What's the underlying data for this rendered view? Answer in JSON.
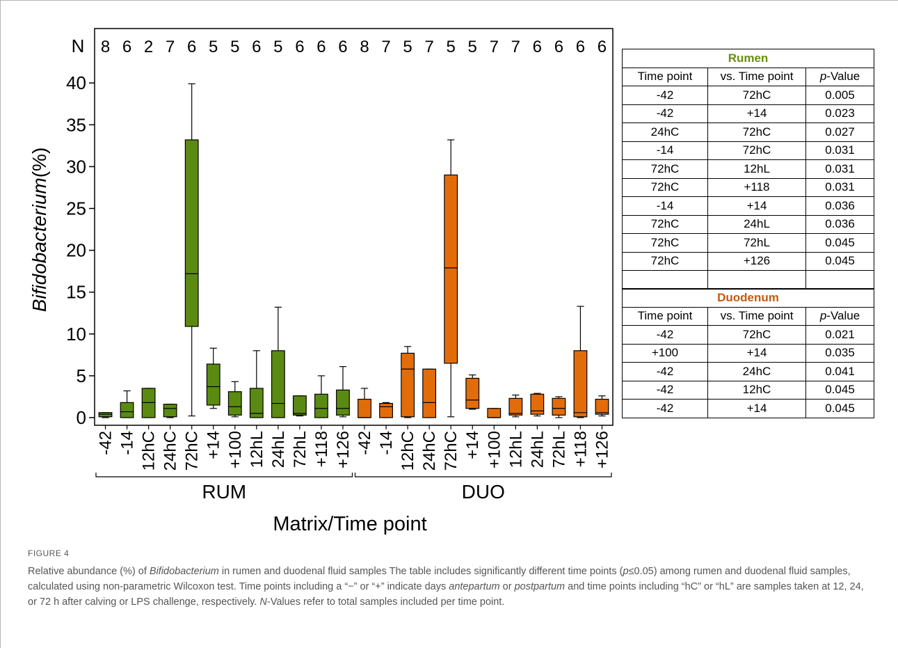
{
  "chart_data": {
    "type": "box",
    "ylabel": "Bifidobacterium(%)",
    "ylabel_italic": "Bifidobacterium",
    "ylabel_unit": "(%)",
    "xlabel": "Matrix/Time point",
    "ylim": [
      0,
      43
    ],
    "yticks": [
      "0",
      "5",
      "10",
      "15",
      "20",
      "25",
      "30",
      "35",
      "40"
    ],
    "n_label": "N",
    "groups": [
      {
        "name": "RUM",
        "color": "#5b8a12",
        "categories": [
          "-42",
          "-14",
          "12hC",
          "24hC",
          "72hC",
          "+14",
          "+100",
          "12hL",
          "24hL",
          "72hL",
          "+118",
          "+126"
        ],
        "n": [
          "8",
          "6",
          "2",
          "7",
          "6",
          "5",
          "5",
          "6",
          "5",
          "6",
          "6",
          "6"
        ],
        "boxes": [
          {
            "min": 0.0,
            "q1": 0.1,
            "median": 0.4,
            "q3": 0.6,
            "max": 0.6
          },
          {
            "min": 0.0,
            "q1": 0.0,
            "median": 0.7,
            "q3": 1.8,
            "max": 3.2
          },
          {
            "min": 0.0,
            "q1": 0.0,
            "median": 1.8,
            "q3": 3.5,
            "max": 3.5
          },
          {
            "min": 0.0,
            "q1": 0.1,
            "median": 1.1,
            "q3": 1.6,
            "max": 1.6
          },
          {
            "min": 0.2,
            "q1": 10.9,
            "median": 17.2,
            "q3": 33.2,
            "max": 39.9
          },
          {
            "min": 1.1,
            "q1": 1.5,
            "median": 3.7,
            "q3": 6.4,
            "max": 8.3
          },
          {
            "min": 0.1,
            "q1": 0.3,
            "median": 1.3,
            "q3": 3.1,
            "max": 4.3
          },
          {
            "min": 0.0,
            "q1": 0.0,
            "median": 0.5,
            "q3": 3.5,
            "max": 8.0
          },
          {
            "min": 0.0,
            "q1": 0.0,
            "median": 1.7,
            "q3": 8.0,
            "max": 13.2
          },
          {
            "min": 0.2,
            "q1": 0.3,
            "median": 0.5,
            "q3": 2.6,
            "max": 2.6
          },
          {
            "min": 0.0,
            "q1": 0.0,
            "median": 1.1,
            "q3": 2.8,
            "max": 5.0
          },
          {
            "min": 0.1,
            "q1": 0.3,
            "median": 1.1,
            "q3": 3.3,
            "max": 6.1
          }
        ]
      },
      {
        "name": "DUO",
        "color": "#e36c0a",
        "categories": [
          "-42",
          "-14",
          "12hC",
          "24hC",
          "72hC",
          "+14",
          "+100",
          "12hL",
          "24hL",
          "72hL",
          "+118",
          "+126"
        ],
        "n": [
          "8",
          "7",
          "5",
          "7",
          "5",
          "5",
          "7",
          "7",
          "6",
          "6",
          "6",
          "6"
        ],
        "boxes": [
          {
            "min": 0.0,
            "q1": 0.0,
            "median": 0.0,
            "q3": 2.2,
            "max": 3.5
          },
          {
            "min": 0.0,
            "q1": 0.0,
            "median": 1.3,
            "q3": 1.7,
            "max": 1.8
          },
          {
            "min": 0.0,
            "q1": 0.1,
            "median": 5.8,
            "q3": 7.7,
            "max": 8.5
          },
          {
            "min": 0.0,
            "q1": 0.0,
            "median": 1.8,
            "q3": 5.8,
            "max": 5.8
          },
          {
            "min": 0.1,
            "q1": 6.5,
            "median": 17.9,
            "q3": 29.0,
            "max": 33.2
          },
          {
            "min": 1.0,
            "q1": 1.1,
            "median": 2.1,
            "q3": 4.7,
            "max": 5.1
          },
          {
            "min": 0.0,
            "q1": 0.0,
            "median": 0.0,
            "q3": 1.1,
            "max": 1.1
          },
          {
            "min": 0.1,
            "q1": 0.3,
            "median": 0.5,
            "q3": 2.3,
            "max": 2.7
          },
          {
            "min": 0.2,
            "q1": 0.4,
            "median": 0.8,
            "q3": 2.8,
            "max": 2.9
          },
          {
            "min": 0.0,
            "q1": 0.3,
            "median": 1.1,
            "q3": 2.3,
            "max": 2.5
          },
          {
            "min": 0.0,
            "q1": 0.1,
            "median": 0.6,
            "q3": 8.0,
            "max": 13.3
          },
          {
            "min": 0.2,
            "q1": 0.4,
            "median": 0.6,
            "q3": 2.2,
            "max": 2.6
          }
        ]
      }
    ]
  },
  "tables": {
    "rumen": {
      "title": "Rumen",
      "headers": [
        "Time point",
        "vs. Time point",
        "p",
        "-Value"
      ],
      "rows": [
        [
          "-42",
          "72hC",
          "0.005"
        ],
        [
          "-42",
          "+14",
          "0.023"
        ],
        [
          "24hC",
          "72hC",
          "0.027"
        ],
        [
          "-14",
          "72hC",
          "0.031"
        ],
        [
          "72hC",
          "12hL",
          "0.031"
        ],
        [
          "72hC",
          "+118",
          "0.031"
        ],
        [
          "-14",
          "+14",
          "0.036"
        ],
        [
          "72hC",
          "24hL",
          "0.036"
        ],
        [
          "72hC",
          "72hL",
          "0.045"
        ],
        [
          "72hC",
          "+126",
          "0.045"
        ],
        [
          "",
          "",
          ""
        ]
      ]
    },
    "duodenum": {
      "title": "Duodenum",
      "headers": [
        "Time point",
        "vs. Time point",
        "p",
        "-Value"
      ],
      "rows": [
        [
          "-42",
          "72hC",
          "0.021"
        ],
        [
          "+100",
          "+14",
          "0.035"
        ],
        [
          "-42",
          "24hC",
          "0.041"
        ],
        [
          "-42",
          "12hC",
          "0.045"
        ],
        [
          "-42",
          "+14",
          "0.045"
        ]
      ]
    }
  },
  "caption": {
    "label": "FIGURE 4",
    "parts": [
      {
        "t": "Relative abundance (%) of ",
        "i": false
      },
      {
        "t": "Bifidobacterium",
        "i": true
      },
      {
        "t": " in rumen and duodenal fluid samples The table includes significantly different time points (",
        "i": false
      },
      {
        "t": "p",
        "i": true
      },
      {
        "t": "≤0.05) among rumen and duodenal fluid samples, calculated using non-parametric Wilcoxon test. Time points including a “−” or “+” indicate days ",
        "i": false
      },
      {
        "t": "antepartum",
        "i": true
      },
      {
        "t": " or ",
        "i": false
      },
      {
        "t": "postpartum",
        "i": true
      },
      {
        "t": " and time points including “hC” or “hL” are samples taken at 12, 24, or 72 h after calving or LPS challenge, respectively. ",
        "i": false
      },
      {
        "t": "N",
        "i": true
      },
      {
        "t": "-Values refer to total samples included per time point.",
        "i": false
      }
    ]
  }
}
